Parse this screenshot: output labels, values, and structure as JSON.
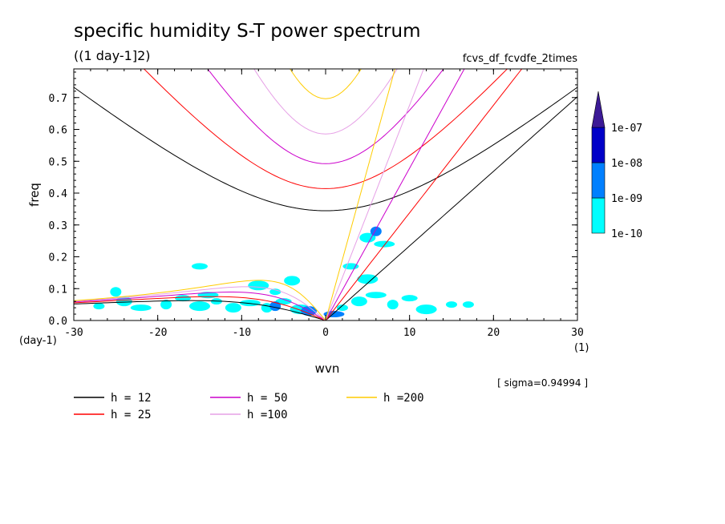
{
  "chart_data": {
    "type": "line",
    "title": "specific humidity S-T power spectrum",
    "units": "((1 day-1]2)",
    "run_name": "fcvs_df_fcvdfe_2times",
    "xlabel": "wvn",
    "ylabel": "freq",
    "x_unit": "(1)",
    "y_unit": "(day-1)",
    "sigma_note": "[ sigma=0.94994 ]",
    "xlim": [
      -30,
      30
    ],
    "ylim": [
      0,
      0.79
    ],
    "xticks": [
      -30,
      -20,
      -10,
      0,
      10,
      20,
      30
    ],
    "xtick_labels": [
      "-30",
      "-20",
      "-10",
      "0",
      "10",
      "20",
      "30"
    ],
    "yticks": [
      0.0,
      0.1,
      0.2,
      0.3,
      0.4,
      0.5,
      0.6,
      0.7
    ],
    "ytick_labels": [
      "0.0",
      "0.1",
      "0.2",
      "0.3",
      "0.4",
      "0.5",
      "0.6",
      "0.7"
    ],
    "grid": false,
    "colorbar": {
      "levels": [
        "1e-10",
        "1e-09",
        "1e-08",
        "1e-07"
      ],
      "colors": [
        "#00ffff",
        "#0080ff",
        "#0000c8",
        "#3c1a96"
      ]
    },
    "series": [
      {
        "name": "h = 12",
        "h": 12,
        "color": "#000000"
      },
      {
        "name": "h = 25",
        "h": 25,
        "color": "#ff0000"
      },
      {
        "name": "h = 50",
        "h": 50,
        "color": "#cc00cc"
      },
      {
        "name": "h =100",
        "h": 100,
        "color": "#e6a0e6"
      },
      {
        "name": "h =200",
        "h": 200,
        "color": "#ffcc00"
      }
    ],
    "spectrum_blobs": [
      {
        "x": -27,
        "y": 0.045,
        "level": 0
      },
      {
        "x": -24,
        "y": 0.06,
        "level": 0
      },
      {
        "x": -22,
        "y": 0.04,
        "level": 0
      },
      {
        "x": -19,
        "y": 0.05,
        "level": 0
      },
      {
        "x": -17,
        "y": 0.07,
        "level": 0
      },
      {
        "x": -15,
        "y": 0.045,
        "level": 0
      },
      {
        "x": -13,
        "y": 0.06,
        "level": 0
      },
      {
        "x": -11,
        "y": 0.04,
        "level": 0
      },
      {
        "x": -9,
        "y": 0.055,
        "level": 0
      },
      {
        "x": -7,
        "y": 0.04,
        "level": 0
      },
      {
        "x": -5,
        "y": 0.06,
        "level": 0
      },
      {
        "x": -3,
        "y": 0.035,
        "level": 0
      },
      {
        "x": -6,
        "y": 0.09,
        "level": 0
      },
      {
        "x": -4,
        "y": 0.125,
        "level": 0
      },
      {
        "x": -14,
        "y": 0.08,
        "level": 0
      },
      {
        "x": -25,
        "y": 0.09,
        "level": 0
      },
      {
        "x": -15,
        "y": 0.17,
        "level": 0
      },
      {
        "x": -8,
        "y": 0.11,
        "level": 0
      },
      {
        "x": 2,
        "y": 0.04,
        "level": 0
      },
      {
        "x": 4,
        "y": 0.06,
        "level": 0
      },
      {
        "x": 6,
        "y": 0.08,
        "level": 0
      },
      {
        "x": 8,
        "y": 0.05,
        "level": 0
      },
      {
        "x": 10,
        "y": 0.07,
        "level": 0
      },
      {
        "x": 12,
        "y": 0.035,
        "level": 0
      },
      {
        "x": 15,
        "y": 0.05,
        "level": 0
      },
      {
        "x": 5,
        "y": 0.26,
        "level": 0
      },
      {
        "x": 7,
        "y": 0.24,
        "level": 0
      },
      {
        "x": 6,
        "y": 0.28,
        "level": 1
      },
      {
        "x": 3,
        "y": 0.17,
        "level": 0
      },
      {
        "x": 5,
        "y": 0.13,
        "level": 0
      },
      {
        "x": 17,
        "y": 0.05,
        "level": 0
      },
      {
        "x": -2,
        "y": 0.03,
        "level": 1
      },
      {
        "x": 1,
        "y": 0.02,
        "level": 1
      },
      {
        "x": -6,
        "y": 0.045,
        "level": 1
      }
    ]
  }
}
